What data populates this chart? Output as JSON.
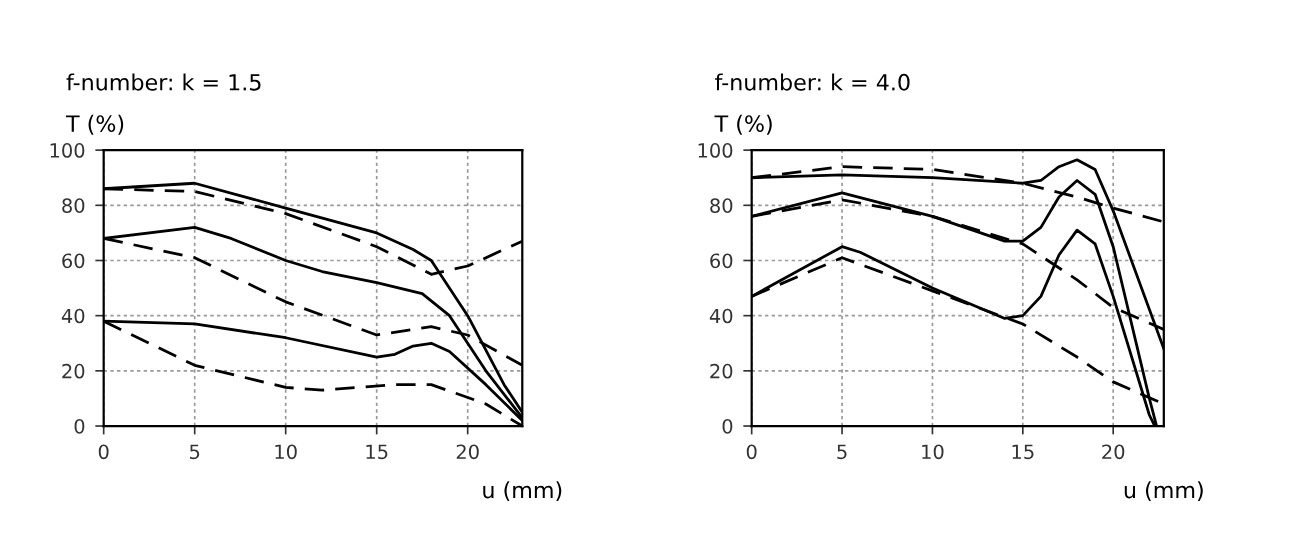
{
  "chart_data": [
    {
      "type": "line",
      "title": "f-number: k = 1.5",
      "ylabel": "T (%)",
      "xlabel": "u (mm)",
      "xlim": [
        0,
        23
      ],
      "ylim": [
        0,
        100
      ],
      "xticks": [
        0,
        5,
        10,
        15,
        20
      ],
      "yticks": [
        0,
        20,
        40,
        60,
        80,
        100
      ],
      "grid": true,
      "marker": "none",
      "series": [
        {
          "color": "#000000",
          "line_style": "solid",
          "x": [
            0,
            5,
            10,
            15,
            17,
            18,
            20,
            22,
            23
          ],
          "values": [
            86,
            88,
            79,
            70,
            64,
            60,
            40,
            15,
            5
          ]
        },
        {
          "color": "#000000",
          "line_style": "solid",
          "x": [
            0,
            5,
            7,
            10,
            12,
            15,
            17.5,
            19,
            21,
            23
          ],
          "values": [
            68,
            72,
            68,
            60,
            56,
            52,
            48,
            40,
            20,
            3
          ]
        },
        {
          "color": "#000000",
          "line_style": "solid",
          "x": [
            0,
            5,
            10,
            15,
            16,
            17,
            18,
            19,
            21,
            23
          ],
          "values": [
            38,
            37,
            32,
            25,
            26,
            29,
            30,
            27,
            15,
            2
          ]
        },
        {
          "color": "#000000",
          "line_style": "dashed",
          "x": [
            0,
            5,
            10,
            15,
            18,
            20,
            23
          ],
          "values": [
            86,
            85,
            77,
            65,
            55,
            58,
            67
          ]
        },
        {
          "color": "#000000",
          "line_style": "dashed",
          "x": [
            0,
            5,
            10,
            15,
            18,
            20,
            23
          ],
          "values": [
            68,
            61,
            45,
            33,
            36,
            33,
            22
          ]
        },
        {
          "color": "#000000",
          "line_style": "dashed",
          "x": [
            0,
            5,
            10,
            12,
            16,
            18,
            21,
            23
          ],
          "values": [
            38,
            22,
            14,
            13,
            15,
            15,
            8,
            0
          ]
        }
      ]
    },
    {
      "type": "line",
      "title": "f-number: k = 4.0",
      "ylabel": "T (%)",
      "xlabel": "u (mm)",
      "xlim": [
        0,
        22.8
      ],
      "ylim": [
        0,
        100
      ],
      "xticks": [
        0,
        5,
        10,
        15,
        20
      ],
      "yticks": [
        0,
        20,
        40,
        60,
        80,
        100
      ],
      "grid": true,
      "marker": "none",
      "series": [
        {
          "color": "#000000",
          "line_style": "solid",
          "x": [
            0,
            5,
            10,
            15,
            16,
            17,
            18,
            19,
            20,
            22.8
          ],
          "values": [
            90,
            91,
            90,
            88,
            89,
            94,
            96.5,
            93,
            78,
            28
          ]
        },
        {
          "color": "#000000",
          "line_style": "solid",
          "x": [
            0,
            5,
            10,
            14,
            15,
            16,
            17,
            18,
            19,
            20,
            22,
            22.4
          ],
          "values": [
            76,
            84.5,
            76,
            67,
            67,
            72,
            83,
            89,
            84,
            65,
            10,
            0
          ]
        },
        {
          "color": "#000000",
          "line_style": "solid",
          "x": [
            0,
            5,
            6,
            10,
            14,
            15,
            16,
            17,
            18,
            19,
            20,
            22,
            22.3
          ],
          "values": [
            47,
            65,
            63,
            50,
            39,
            40,
            47,
            62,
            71,
            66,
            47,
            4,
            0
          ]
        },
        {
          "color": "#000000",
          "line_style": "dashed",
          "x": [
            0,
            5,
            10,
            15,
            18,
            20,
            22.8
          ],
          "values": [
            90,
            94,
            93,
            88,
            83,
            79,
            74
          ]
        },
        {
          "color": "#000000",
          "line_style": "dashed",
          "x": [
            0,
            5,
            10,
            15,
            18,
            20,
            22.8
          ],
          "values": [
            76,
            82,
            76,
            66,
            53,
            43,
            35
          ]
        },
        {
          "color": "#000000",
          "line_style": "dashed",
          "x": [
            0,
            5,
            10,
            15,
            18,
            20,
            22.8
          ],
          "values": [
            47,
            61,
            49,
            37,
            25,
            16,
            8
          ]
        }
      ]
    }
  ]
}
